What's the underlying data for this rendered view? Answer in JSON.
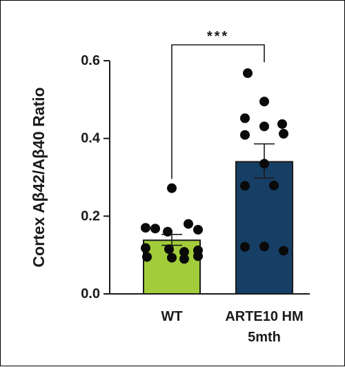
{
  "chart_data": {
    "type": "bar",
    "ylabel": "Cortex Aβ42/Aβ40 Ratio",
    "ylim": [
      0,
      0.6
    ],
    "yticks": [
      "0.0",
      "0.2",
      "0.4",
      "0.6"
    ],
    "ytick_values": [
      0,
      0.2,
      0.4,
      0.6
    ],
    "categories": [
      {
        "lines": [
          "WT"
        ]
      },
      {
        "lines": [
          "ARTE10 HM",
          "5mth"
        ]
      }
    ],
    "bars": [
      {
        "mean": 0.138,
        "sem_upper": 0.153,
        "sem_lower": 0.125,
        "color": "#a2cc3a",
        "points": [
          0.272,
          0.17,
          0.168,
          0.16,
          0.18,
          0.165,
          0.118,
          0.112,
          0.115,
          0.108,
          0.095,
          0.093,
          0.09,
          0.097
        ]
      },
      {
        "mean": 0.34,
        "sem_upper": 0.386,
        "sem_lower": 0.298,
        "color": "#173f66",
        "points": [
          0.568,
          0.495,
          0.452,
          0.431,
          0.437,
          0.412,
          0.409,
          0.335,
          0.278,
          0.279,
          0.121,
          0.122,
          0.111
        ]
      }
    ],
    "significance": {
      "label": "***",
      "between": [
        0,
        1
      ]
    }
  }
}
